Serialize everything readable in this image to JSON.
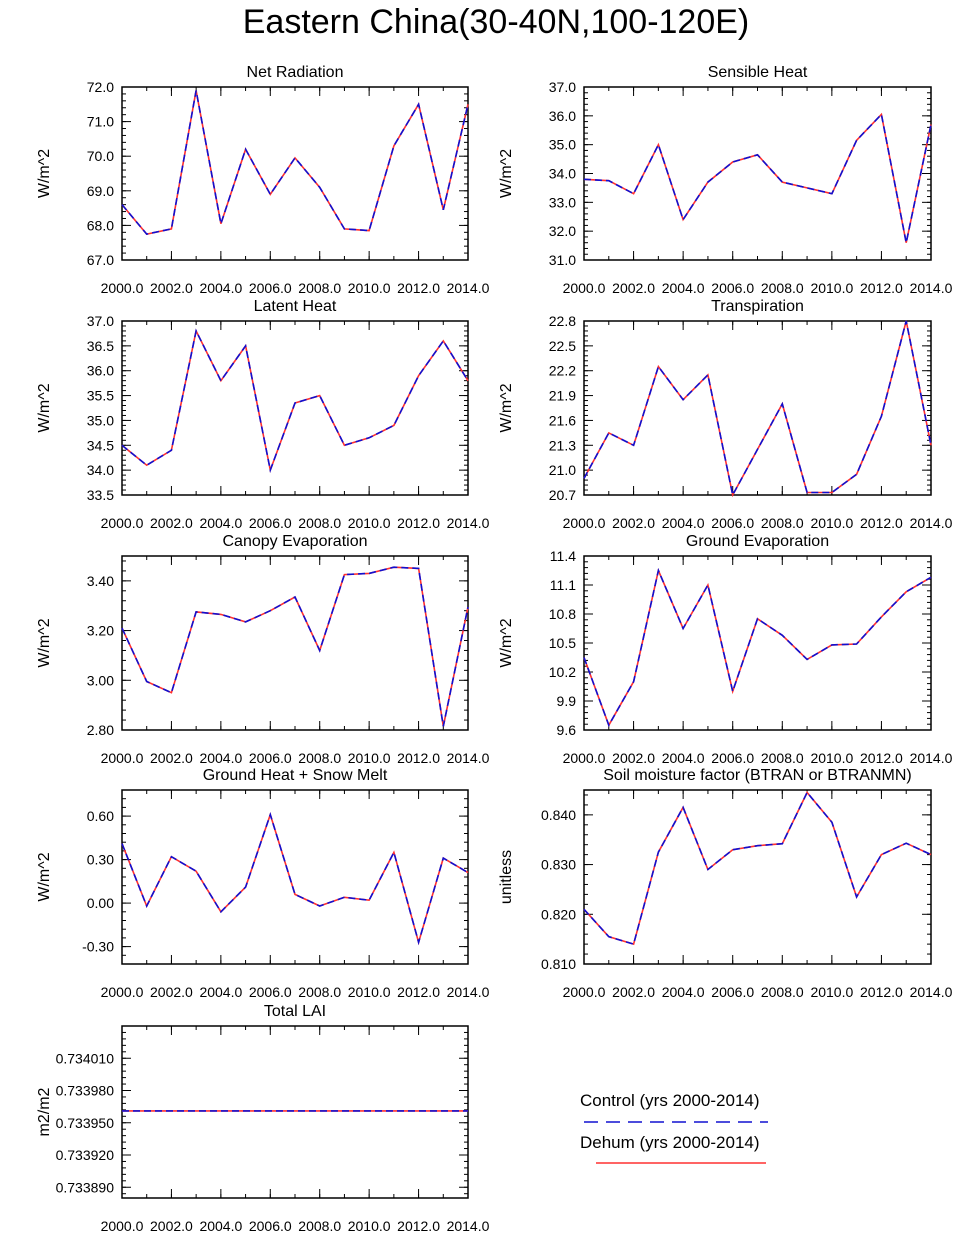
{
  "figure": {
    "title": "Eastern China(30-40N,100-120E)"
  },
  "legend": {
    "control_label": "Control (yrs 2000-2014)",
    "dehum_label": "Dehum (yrs 2000-2014)",
    "control_color": "#1010d0",
    "dehum_color": "#ff3030"
  },
  "chart_data": [
    {
      "type": "line",
      "title": "Net Radiation",
      "ylabel": "W/m^2",
      "xlabel": "",
      "x": [
        2000,
        2001,
        2002,
        2003,
        2004,
        2005,
        2006,
        2007,
        2008,
        2009,
        2010,
        2011,
        2012,
        2013,
        2014
      ],
      "xlim": [
        2000,
        2014
      ],
      "xticks": [
        2000,
        2002,
        2004,
        2006,
        2008,
        2010,
        2012,
        2014
      ],
      "xtick_labels": [
        "2000.0",
        "2002.0",
        "2004.0",
        "2006.0",
        "2008.0",
        "2010.0",
        "2012.0",
        "2014.0"
      ],
      "ylim": [
        67.0,
        72.0
      ],
      "yticks": [
        67.0,
        68.0,
        69.0,
        70.0,
        71.0,
        72.0
      ],
      "ytick_labels": [
        "67.0",
        "68.0",
        "69.0",
        "70.0",
        "71.0",
        "72.0"
      ],
      "series": [
        {
          "name": "Control (yrs 2000-2014)",
          "values": [
            68.6,
            67.75,
            67.9,
            71.9,
            68.05,
            70.2,
            68.9,
            69.95,
            69.1,
            67.9,
            67.85,
            70.3,
            71.5,
            68.45,
            71.5
          ]
        },
        {
          "name": "Dehum (yrs 2000-2014)",
          "values": [
            68.6,
            67.75,
            67.9,
            71.9,
            68.05,
            70.2,
            68.9,
            69.95,
            69.1,
            67.9,
            67.85,
            70.3,
            71.5,
            68.45,
            71.5
          ]
        }
      ]
    },
    {
      "type": "line",
      "title": "Sensible Heat",
      "ylabel": "W/m^2",
      "xlabel": "",
      "x": [
        2000,
        2001,
        2002,
        2003,
        2004,
        2005,
        2006,
        2007,
        2008,
        2009,
        2010,
        2011,
        2012,
        2013,
        2014
      ],
      "xlim": [
        2000,
        2014
      ],
      "xticks": [
        2000,
        2002,
        2004,
        2006,
        2008,
        2010,
        2012,
        2014
      ],
      "xtick_labels": [
        "2000.0",
        "2002.0",
        "2004.0",
        "2006.0",
        "2008.0",
        "2010.0",
        "2012.0",
        "2014.0"
      ],
      "ylim": [
        31.0,
        37.0
      ],
      "yticks": [
        31.0,
        32.0,
        33.0,
        34.0,
        35.0,
        36.0,
        37.0
      ],
      "ytick_labels": [
        "31.0",
        "32.0",
        "33.0",
        "34.0",
        "35.0",
        "36.0",
        "37.0"
      ],
      "series": [
        {
          "name": "Control (yrs 2000-2014)",
          "values": [
            33.8,
            33.75,
            33.3,
            35.0,
            32.4,
            33.7,
            34.4,
            34.65,
            33.7,
            33.5,
            33.3,
            35.15,
            36.05,
            31.6,
            35.7
          ]
        },
        {
          "name": "Dehum (yrs 2000-2014)",
          "values": [
            33.8,
            33.75,
            33.3,
            35.0,
            32.4,
            33.7,
            34.4,
            34.65,
            33.7,
            33.5,
            33.3,
            35.15,
            36.05,
            31.6,
            35.7
          ]
        }
      ]
    },
    {
      "type": "line",
      "title": "Latent Heat",
      "ylabel": "W/m^2",
      "xlabel": "",
      "x": [
        2000,
        2001,
        2002,
        2003,
        2004,
        2005,
        2006,
        2007,
        2008,
        2009,
        2010,
        2011,
        2012,
        2013,
        2014
      ],
      "xlim": [
        2000,
        2014
      ],
      "xticks": [
        2000,
        2002,
        2004,
        2006,
        2008,
        2010,
        2012,
        2014
      ],
      "xtick_labels": [
        "2000.0",
        "2002.0",
        "2004.0",
        "2006.0",
        "2008.0",
        "2010.0",
        "2012.0",
        "2014.0"
      ],
      "ylim": [
        33.5,
        37.0
      ],
      "yticks": [
        33.5,
        34.0,
        34.5,
        35.0,
        35.5,
        36.0,
        36.5,
        37.0
      ],
      "ytick_labels": [
        "33.5",
        "34.0",
        "34.5",
        "35.0",
        "35.5",
        "36.0",
        "36.5",
        "37.0"
      ],
      "series": [
        {
          "name": "Control (yrs 2000-2014)",
          "values": [
            34.5,
            34.1,
            34.4,
            36.8,
            35.8,
            36.5,
            34.0,
            35.35,
            35.5,
            34.5,
            34.65,
            34.9,
            35.9,
            36.6,
            35.8
          ]
        },
        {
          "name": "Dehum (yrs 2000-2014)",
          "values": [
            34.5,
            34.1,
            34.4,
            36.8,
            35.8,
            36.5,
            34.0,
            35.35,
            35.5,
            34.5,
            34.65,
            34.9,
            35.9,
            36.6,
            35.8
          ]
        }
      ]
    },
    {
      "type": "line",
      "title": "Transpiration",
      "ylabel": "W/m^2",
      "xlabel": "",
      "x": [
        2000,
        2001,
        2002,
        2003,
        2004,
        2005,
        2006,
        2007,
        2008,
        2009,
        2010,
        2011,
        2012,
        2013,
        2014
      ],
      "xlim": [
        2000,
        2014
      ],
      "xticks": [
        2000,
        2002,
        2004,
        2006,
        2008,
        2010,
        2012,
        2014
      ],
      "xtick_labels": [
        "2000.0",
        "2002.0",
        "2004.0",
        "2006.0",
        "2008.0",
        "2010.0",
        "2012.0",
        "2014.0"
      ],
      "ylim": [
        20.7,
        22.8
      ],
      "yticks": [
        20.7,
        21.0,
        21.3,
        21.6,
        21.9,
        22.2,
        22.5,
        22.8
      ],
      "ytick_labels": [
        "20.7",
        "21.0",
        "21.3",
        "21.6",
        "21.9",
        "22.2",
        "22.5",
        "22.8"
      ],
      "series": [
        {
          "name": "Control (yrs 2000-2014)",
          "values": [
            20.9,
            21.45,
            21.3,
            22.25,
            21.85,
            22.15,
            20.7,
            21.25,
            21.8,
            20.73,
            20.73,
            20.95,
            21.65,
            22.8,
            21.3
          ]
        },
        {
          "name": "Dehum (yrs 2000-2014)",
          "values": [
            20.9,
            21.45,
            21.3,
            22.25,
            21.85,
            22.15,
            20.7,
            21.25,
            21.8,
            20.73,
            20.73,
            20.95,
            21.65,
            22.8,
            21.3
          ]
        }
      ]
    },
    {
      "type": "line",
      "title": "Canopy Evaporation",
      "ylabel": "W/m^2",
      "xlabel": "",
      "x": [
        2000,
        2001,
        2002,
        2003,
        2004,
        2005,
        2006,
        2007,
        2008,
        2009,
        2010,
        2011,
        2012,
        2013,
        2014
      ],
      "xlim": [
        2000,
        2014
      ],
      "xticks": [
        2000,
        2002,
        2004,
        2006,
        2008,
        2010,
        2012,
        2014
      ],
      "xtick_labels": [
        "2000.0",
        "2002.0",
        "2004.0",
        "2006.0",
        "2008.0",
        "2010.0",
        "2012.0",
        "2014.0"
      ],
      "ylim": [
        2.8,
        3.5
      ],
      "yticks": [
        2.8,
        3.0,
        3.2,
        3.4
      ],
      "ytick_labels": [
        "2.80",
        "3.00",
        "3.20",
        "3.40"
      ],
      "series": [
        {
          "name": "Control (yrs 2000-2014)",
          "values": [
            3.21,
            2.995,
            2.95,
            3.275,
            3.265,
            3.235,
            3.28,
            3.335,
            3.12,
            3.425,
            3.43,
            3.455,
            3.45,
            2.815,
            3.295
          ]
        },
        {
          "name": "Dehum (yrs 2000-2014)",
          "values": [
            3.21,
            2.995,
            2.95,
            3.275,
            3.265,
            3.235,
            3.28,
            3.335,
            3.12,
            3.425,
            3.43,
            3.455,
            3.45,
            2.815,
            3.295
          ]
        }
      ]
    },
    {
      "type": "line",
      "title": "Ground Evaporation",
      "ylabel": "W/m^2",
      "xlabel": "",
      "x": [
        2000,
        2001,
        2002,
        2003,
        2004,
        2005,
        2006,
        2007,
        2008,
        2009,
        2010,
        2011,
        2012,
        2013,
        2014
      ],
      "xlim": [
        2000,
        2014
      ],
      "xticks": [
        2000,
        2002,
        2004,
        2006,
        2008,
        2010,
        2012,
        2014
      ],
      "xtick_labels": [
        "2000.0",
        "2002.0",
        "2004.0",
        "2006.0",
        "2008.0",
        "2010.0",
        "2012.0",
        "2014.0"
      ],
      "ylim": [
        9.6,
        11.4
      ],
      "yticks": [
        9.6,
        9.9,
        10.2,
        10.5,
        10.8,
        11.1,
        11.4
      ],
      "ytick_labels": [
        "9.6",
        "9.9",
        "10.2",
        "10.5",
        "10.8",
        "11.1",
        "11.4"
      ],
      "series": [
        {
          "name": "Control (yrs 2000-2014)",
          "values": [
            10.35,
            9.65,
            10.1,
            11.25,
            10.65,
            11.1,
            10.0,
            10.75,
            10.58,
            10.33,
            10.48,
            10.49,
            10.77,
            11.03,
            11.18
          ]
        },
        {
          "name": "Dehum (yrs 2000-2014)",
          "values": [
            10.35,
            9.65,
            10.1,
            11.25,
            10.65,
            11.1,
            10.0,
            10.75,
            10.58,
            10.33,
            10.48,
            10.49,
            10.77,
            11.03,
            11.18
          ]
        }
      ]
    },
    {
      "type": "line",
      "title": "Ground Heat + Snow Melt",
      "ylabel": "W/m^2",
      "xlabel": "",
      "x": [
        2000,
        2001,
        2002,
        2003,
        2004,
        2005,
        2006,
        2007,
        2008,
        2009,
        2010,
        2011,
        2012,
        2013,
        2014
      ],
      "xlim": [
        2000,
        2014
      ],
      "xticks": [
        2000,
        2002,
        2004,
        2006,
        2008,
        2010,
        2012,
        2014
      ],
      "xtick_labels": [
        "2000.0",
        "2002.0",
        "2004.0",
        "2006.0",
        "2008.0",
        "2010.0",
        "2012.0",
        "2014.0"
      ],
      "ylim": [
        -0.42,
        0.78
      ],
      "yticks": [
        -0.3,
        0.0,
        0.3,
        0.6
      ],
      "ytick_labels": [
        "-0.30",
        "0.00",
        "0.30",
        "0.60"
      ],
      "series": [
        {
          "name": "Control (yrs 2000-2014)",
          "values": [
            0.41,
            -0.02,
            0.32,
            0.22,
            -0.06,
            0.11,
            0.61,
            0.06,
            -0.02,
            0.04,
            0.02,
            0.35,
            -0.27,
            0.31,
            0.21
          ]
        },
        {
          "name": "Dehum (yrs 2000-2014)",
          "values": [
            0.41,
            -0.02,
            0.32,
            0.22,
            -0.06,
            0.11,
            0.61,
            0.06,
            -0.02,
            0.04,
            0.02,
            0.35,
            -0.27,
            0.31,
            0.21
          ]
        }
      ]
    },
    {
      "type": "line",
      "title": "Soil moisture factor (BTRAN or BTRANMN)",
      "ylabel": "unitless",
      "xlabel": "",
      "x": [
        2000,
        2001,
        2002,
        2003,
        2004,
        2005,
        2006,
        2007,
        2008,
        2009,
        2010,
        2011,
        2012,
        2013,
        2014
      ],
      "xlim": [
        2000,
        2014
      ],
      "xticks": [
        2000,
        2002,
        2004,
        2006,
        2008,
        2010,
        2012,
        2014
      ],
      "xtick_labels": [
        "2000.0",
        "2002.0",
        "2004.0",
        "2006.0",
        "2008.0",
        "2010.0",
        "2012.0",
        "2014.0"
      ],
      "ylim": [
        0.81,
        0.845
      ],
      "yticks": [
        0.81,
        0.82,
        0.83,
        0.84
      ],
      "ytick_labels": [
        "0.810",
        "0.820",
        "0.830",
        "0.840"
      ],
      "series": [
        {
          "name": "Control (yrs 2000-2014)",
          "values": [
            0.821,
            0.8155,
            0.814,
            0.8325,
            0.8415,
            0.829,
            0.833,
            0.8338,
            0.8342,
            0.8445,
            0.8385,
            0.8235,
            0.832,
            0.8343,
            0.832
          ]
        },
        {
          "name": "Dehum (yrs 2000-2014)",
          "values": [
            0.821,
            0.8155,
            0.814,
            0.8325,
            0.8415,
            0.829,
            0.833,
            0.8338,
            0.8342,
            0.8445,
            0.8385,
            0.8235,
            0.832,
            0.8343,
            0.832
          ]
        }
      ]
    },
    {
      "type": "line",
      "title": "Total LAI",
      "ylabel": "m2/m2",
      "xlabel": "",
      "x": [
        2000,
        2001,
        2002,
        2003,
        2004,
        2005,
        2006,
        2007,
        2008,
        2009,
        2010,
        2011,
        2012,
        2013,
        2014
      ],
      "xlim": [
        2000,
        2014
      ],
      "xticks": [
        2000,
        2002,
        2004,
        2006,
        2008,
        2010,
        2012,
        2014
      ],
      "xtick_labels": [
        "2000.0",
        "2002.0",
        "2004.0",
        "2006.0",
        "2008.0",
        "2010.0",
        "2012.0",
        "2014.0"
      ],
      "ylim": [
        0.73388,
        0.73404
      ],
      "yticks": [
        0.73389,
        0.73392,
        0.73395,
        0.73398,
        0.73401
      ],
      "ytick_labels": [
        "0.733890",
        "0.733920",
        "0.733950",
        "0.733980",
        "0.734010"
      ],
      "series": [
        {
          "name": "Control (yrs 2000-2014)",
          "values": [
            0.733961,
            0.733961,
            0.733961,
            0.733961,
            0.733961,
            0.733961,
            0.733961,
            0.733961,
            0.733961,
            0.733961,
            0.733961,
            0.733961,
            0.733961,
            0.733961,
            0.733961
          ]
        },
        {
          "name": "Dehum (yrs 2000-2014)",
          "values": [
            0.733961,
            0.733961,
            0.733961,
            0.733961,
            0.733961,
            0.733961,
            0.733961,
            0.733961,
            0.733961,
            0.733961,
            0.733961,
            0.733961,
            0.733961,
            0.733961,
            0.733961
          ]
        }
      ]
    }
  ]
}
